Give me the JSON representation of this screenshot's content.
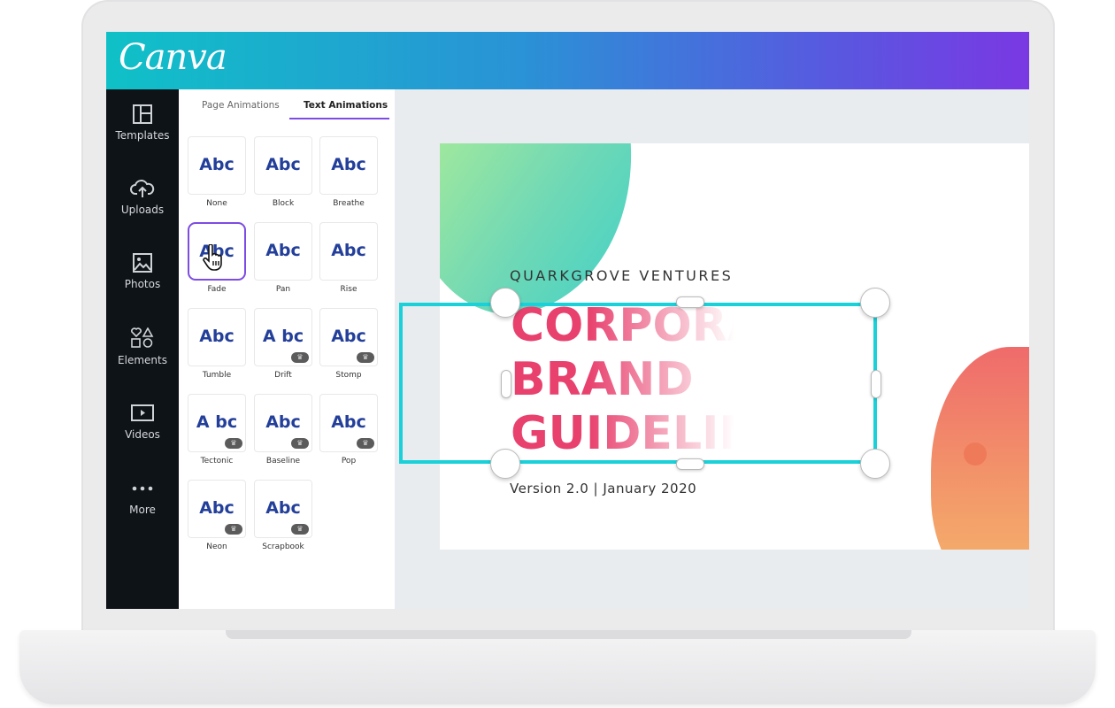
{
  "app": {
    "logo": "Canva",
    "brand_gradient": [
      "#0fc1c7",
      "#7a38e3"
    ]
  },
  "sidebar": {
    "items": [
      {
        "label": "Templates",
        "icon": "layout-icon"
      },
      {
        "label": "Uploads",
        "icon": "cloud-upload-icon"
      },
      {
        "label": "Photos",
        "icon": "image-icon"
      },
      {
        "label": "Elements",
        "icon": "shapes-icon"
      },
      {
        "label": "Videos",
        "icon": "video-icon"
      },
      {
        "label": "More",
        "icon": "more-dots-icon"
      }
    ]
  },
  "panel": {
    "tabs": [
      {
        "label": "Page Animations",
        "active": false
      },
      {
        "label": "Text Animations",
        "active": true
      }
    ],
    "animations": [
      {
        "preview": "Abc",
        "label": "None",
        "premium": false
      },
      {
        "preview": "Abc",
        "label": "Block",
        "premium": false
      },
      {
        "preview": "Abc",
        "label": "Breathe",
        "premium": false
      },
      {
        "preview": "Abc",
        "label": "Fade",
        "premium": false,
        "selected": true
      },
      {
        "preview": "Abc",
        "label": "Pan",
        "premium": false
      },
      {
        "preview": "Abc",
        "label": "Rise",
        "premium": false
      },
      {
        "preview": "Abc",
        "label": "Tumble",
        "premium": false
      },
      {
        "preview": "A bc",
        "label": "Drift",
        "premium": true
      },
      {
        "preview": "Abc",
        "label": "Stomp",
        "premium": true
      },
      {
        "preview": "A bc",
        "label": "Tectonic",
        "premium": true
      },
      {
        "preview": "Abc",
        "label": "Baseline",
        "premium": true
      },
      {
        "preview": "Abc",
        "label": "Pop",
        "premium": true
      },
      {
        "preview": "Abc",
        "label": "Neon",
        "premium": true
      },
      {
        "preview": "Abc",
        "label": "Scrapbook",
        "premium": true
      }
    ]
  },
  "slide": {
    "company": "QUARKGROVE VENTURES",
    "title_lines": [
      "CORPORATE",
      "BRAND",
      "GUIDELINES"
    ],
    "version": "Version 2.0 | January 2020",
    "title_color": "#e8416e",
    "selection_color": "#1ad1d9"
  }
}
